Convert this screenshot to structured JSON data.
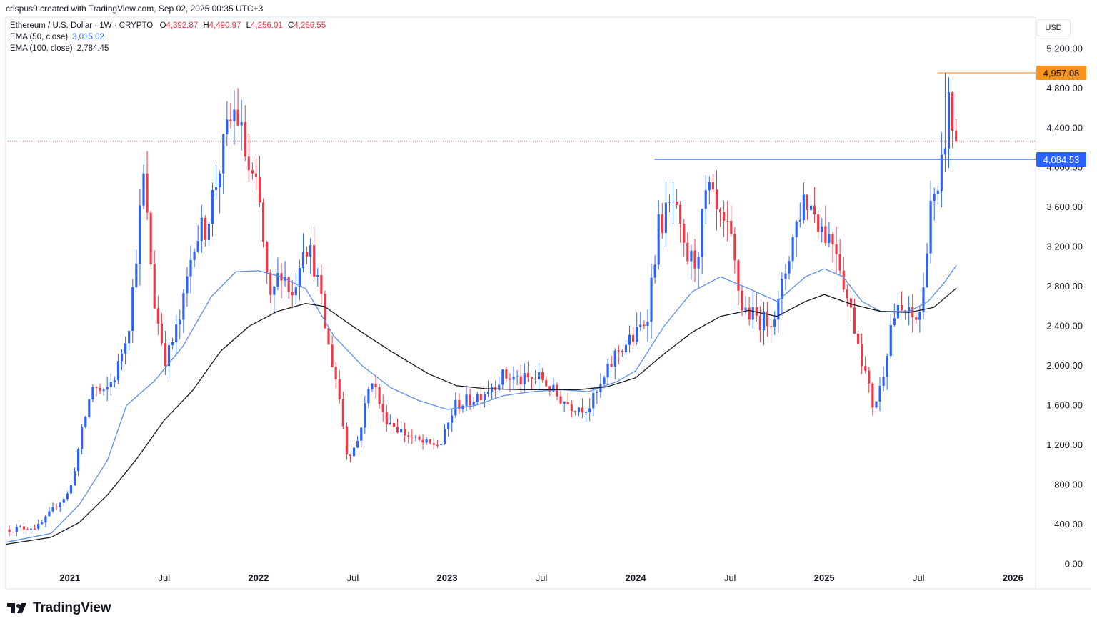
{
  "header": {
    "attribution": "crispus9 created with TradingView.com, Sep 02, 2025 00:35 UTC+3"
  },
  "legend": {
    "symbol": "Ethereum / U.S. Dollar · 1W · CRYPTO",
    "open_label": "O",
    "open": "4,392.87",
    "high_label": "H",
    "high": "4,490.97",
    "low_label": "L",
    "low": "4,256.01",
    "close_label": "C",
    "close": "4,266.55",
    "ema50_label": "EMA (50, close)",
    "ema50_value": "3,015.02",
    "ema100_label": "EMA (100, close)",
    "ema100_value": "2,784.45"
  },
  "currency": "USD",
  "footer": {
    "brand": "TradingView"
  },
  "colors": {
    "up": "#2962ff",
    "down": "#f23645",
    "ema50": "#5b8def",
    "ema100": "#131722",
    "resistance": "#2962ff",
    "peak": "#f7931a",
    "current": "#f23645"
  },
  "chart_data": {
    "type": "candlestick",
    "title": "Ethereum / U.S. Dollar, 1W",
    "ylim": [
      -250,
      5520
    ],
    "y_ticks": [
      0,
      400,
      800,
      1200,
      1600,
      2000,
      2400,
      2800,
      3200,
      3600,
      4000,
      4400,
      4800,
      5200
    ],
    "y_tick_labels": [
      "0.00",
      "400.00",
      "800.00",
      "1,200.00",
      "1,600.00",
      "2,000.00",
      "2,400.00",
      "2,800.00",
      "3,200.00",
      "3,600.00",
      "4,000.00",
      "4,400.00",
      "4,800.00",
      "5,200.00"
    ],
    "x_ticks": [
      {
        "label": "2021",
        "t": 2021.0,
        "bold": true
      },
      {
        "label": "Jul",
        "t": 2021.5,
        "bold": false
      },
      {
        "label": "2022",
        "t": 2022.0,
        "bold": true
      },
      {
        "label": "Jul",
        "t": 2022.5,
        "bold": false
      },
      {
        "label": "2023",
        "t": 2023.0,
        "bold": true
      },
      {
        "label": "Jul",
        "t": 2023.5,
        "bold": false
      },
      {
        "label": "2024",
        "t": 2024.0,
        "bold": true
      },
      {
        "label": "Jul",
        "t": 2024.5,
        "bold": false
      },
      {
        "label": "2025",
        "t": 2025.0,
        "bold": true
      },
      {
        "label": "Jul",
        "t": 2025.5,
        "bold": false
      },
      {
        "label": "2026",
        "t": 2026.0,
        "bold": true
      }
    ],
    "x_range": [
      2020.66,
      2026.12
    ],
    "keypoints": [
      [
        2020.66,
        350
      ],
      [
        2020.84,
        380
      ],
      [
        2020.93,
        600
      ],
      [
        2021.0,
        730
      ],
      [
        2021.06,
        1300
      ],
      [
        2021.12,
        1800
      ],
      [
        2021.18,
        1700
      ],
      [
        2021.25,
        1950
      ],
      [
        2021.32,
        2500
      ],
      [
        2021.39,
        3900
      ],
      [
        2021.45,
        2600
      ],
      [
        2021.51,
        2050
      ],
      [
        2021.59,
        2500
      ],
      [
        2021.66,
        3300
      ],
      [
        2021.72,
        3400
      ],
      [
        2021.78,
        3900
      ],
      [
        2021.84,
        4400
      ],
      [
        2021.88,
        4600
      ],
      [
        2021.95,
        3950
      ],
      [
        2022.0,
        3700
      ],
      [
        2022.06,
        2600
      ],
      [
        2022.12,
        3000
      ],
      [
        2022.18,
        2700
      ],
      [
        2022.24,
        3300
      ],
      [
        2022.3,
        3000
      ],
      [
        2022.37,
        2200
      ],
      [
        2022.42,
        1800
      ],
      [
        2022.47,
        1100
      ],
      [
        2022.52,
        1200
      ],
      [
        2022.6,
        1900
      ],
      [
        2022.66,
        1500
      ],
      [
        2022.75,
        1350
      ],
      [
        2022.83,
        1250
      ],
      [
        2022.9,
        1200
      ],
      [
        2022.97,
        1220
      ],
      [
        2023.04,
        1600
      ],
      [
        2023.12,
        1650
      ],
      [
        2023.2,
        1750
      ],
      [
        2023.3,
        1900
      ],
      [
        2023.4,
        1850
      ],
      [
        2023.5,
        1880
      ],
      [
        2023.58,
        1700
      ],
      [
        2023.66,
        1600
      ],
      [
        2023.75,
        1580
      ],
      [
        2023.82,
        1800
      ],
      [
        2023.9,
        2150
      ],
      [
        2024.0,
        2300
      ],
      [
        2024.06,
        2500
      ],
      [
        2024.12,
        3400
      ],
      [
        2024.2,
        3650
      ],
      [
        2024.26,
        3100
      ],
      [
        2024.32,
        3050
      ],
      [
        2024.38,
        3800
      ],
      [
        2024.44,
        3450
      ],
      [
        2024.5,
        3300
      ],
      [
        2024.56,
        2600
      ],
      [
        2024.62,
        2500
      ],
      [
        2024.68,
        2450
      ],
      [
        2024.75,
        2550
      ],
      [
        2024.82,
        3200
      ],
      [
        2024.89,
        3700
      ],
      [
        2024.94,
        3600
      ],
      [
        2025.0,
        3350
      ],
      [
        2025.06,
        3250
      ],
      [
        2025.12,
        2700
      ],
      [
        2025.18,
        2250
      ],
      [
        2025.22,
        1900
      ],
      [
        2025.26,
        1580
      ],
      [
        2025.3,
        1800
      ],
      [
        2025.36,
        2500
      ],
      [
        2025.42,
        2550
      ],
      [
        2025.48,
        2450
      ],
      [
        2025.52,
        2600
      ],
      [
        2025.56,
        3700
      ],
      [
        2025.6,
        3600
      ],
      [
        2025.64,
        4300
      ],
      [
        2025.66,
        4650
      ],
      [
        2025.68,
        4400
      ],
      [
        2025.7,
        4266
      ]
    ],
    "ema50": [
      [
        2020.66,
        220
      ],
      [
        2020.9,
        310
      ],
      [
        2021.05,
        600
      ],
      [
        2021.2,
        1050
      ],
      [
        2021.3,
        1600
      ],
      [
        2021.45,
        1850
      ],
      [
        2021.6,
        2200
      ],
      [
        2021.75,
        2700
      ],
      [
        2021.88,
        2950
      ],
      [
        2022.0,
        2960
      ],
      [
        2022.12,
        2900
      ],
      [
        2022.25,
        2780
      ],
      [
        2022.4,
        2300
      ],
      [
        2022.55,
        2000
      ],
      [
        2022.7,
        1780
      ],
      [
        2022.85,
        1650
      ],
      [
        2023.0,
        1560
      ],
      [
        2023.15,
        1600
      ],
      [
        2023.3,
        1700
      ],
      [
        2023.45,
        1740
      ],
      [
        2023.6,
        1760
      ],
      [
        2023.75,
        1740
      ],
      [
        2023.9,
        1840
      ],
      [
        2024.0,
        1950
      ],
      [
        2024.15,
        2400
      ],
      [
        2024.3,
        2750
      ],
      [
        2024.45,
        2900
      ],
      [
        2024.6,
        2780
      ],
      [
        2024.75,
        2650
      ],
      [
        2024.9,
        2900
      ],
      [
        2025.0,
        2980
      ],
      [
        2025.1,
        2900
      ],
      [
        2025.2,
        2650
      ],
      [
        2025.3,
        2550
      ],
      [
        2025.45,
        2550
      ],
      [
        2025.55,
        2650
      ],
      [
        2025.64,
        2850
      ],
      [
        2025.7,
        3015
      ]
    ],
    "ema100": [
      [
        2020.66,
        200
      ],
      [
        2020.9,
        270
      ],
      [
        2021.05,
        420
      ],
      [
        2021.2,
        700
      ],
      [
        2021.35,
        1050
      ],
      [
        2021.5,
        1450
      ],
      [
        2021.65,
        1750
      ],
      [
        2021.8,
        2150
      ],
      [
        2021.95,
        2400
      ],
      [
        2022.1,
        2550
      ],
      [
        2022.25,
        2630
      ],
      [
        2022.35,
        2600
      ],
      [
        2022.5,
        2400
      ],
      [
        2022.7,
        2150
      ],
      [
        2022.9,
        1920
      ],
      [
        2023.05,
        1800
      ],
      [
        2023.2,
        1770
      ],
      [
        2023.4,
        1760
      ],
      [
        2023.55,
        1760
      ],
      [
        2023.7,
        1760
      ],
      [
        2023.85,
        1790
      ],
      [
        2024.0,
        1880
      ],
      [
        2024.15,
        2120
      ],
      [
        2024.3,
        2340
      ],
      [
        2024.45,
        2500
      ],
      [
        2024.6,
        2560
      ],
      [
        2024.75,
        2500
      ],
      [
        2024.9,
        2650
      ],
      [
        2025.0,
        2720
      ],
      [
        2025.15,
        2620
      ],
      [
        2025.3,
        2550
      ],
      [
        2025.45,
        2540
      ],
      [
        2025.58,
        2590
      ],
      [
        2025.7,
        2784
      ]
    ],
    "resistance_line": {
      "value": 4084.53,
      "label": "4,084.53",
      "from_t": 2024.1
    },
    "peak_line": {
      "value": 4957.08,
      "label": "4,957.08",
      "from_t": 2025.6
    },
    "current_price_line": {
      "value": 4266.55
    }
  }
}
